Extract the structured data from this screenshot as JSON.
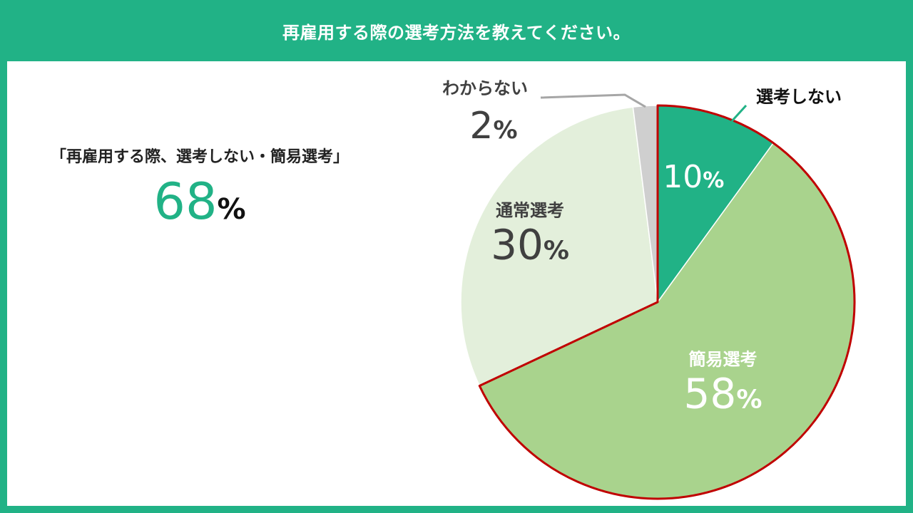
{
  "header": {
    "title": "再雇用する際の選考方法を教えてください。"
  },
  "summary": {
    "label": "「再雇用する際、選考しない・簡易選考」",
    "value": "68",
    "unit": "%"
  },
  "chart_data": {
    "type": "pie",
    "slices": [
      {
        "label": "選考しない",
        "value": 10,
        "display": "10",
        "color": "#21b286",
        "label_color": "#ffffff",
        "name_color": "#111111"
      },
      {
        "label": "簡易選考",
        "value": 58,
        "display": "58",
        "color": "#a9d38d",
        "label_color": "#ffffff",
        "name_color": "#ffffff"
      },
      {
        "label": "通常選考",
        "value": 30,
        "display": "30",
        "color": "#e3efdb",
        "label_color": "#404040",
        "name_color": "#404040"
      },
      {
        "label": "わからない",
        "value": 2,
        "display": "2",
        "color": "#cfcfcf",
        "label_color": "#404040",
        "name_color": "#404040"
      }
    ],
    "unit": "%",
    "highlight_color": "#c00000",
    "highlight_slices": [
      "選考しない",
      "簡易選考"
    ]
  }
}
